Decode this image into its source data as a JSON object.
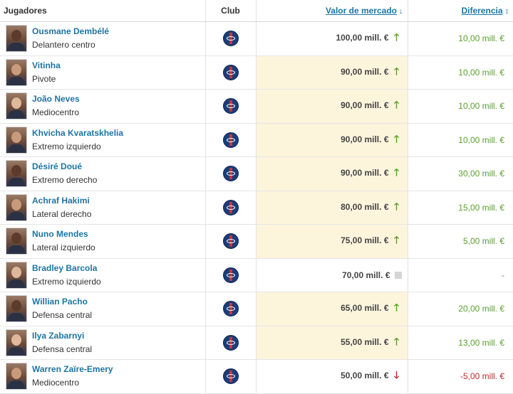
{
  "header": {
    "players": "Jugadores",
    "club": "Club",
    "market_value": "Valor de mercado",
    "market_value_icon": "arrow-down-icon",
    "difference": "Diferencia",
    "difference_icon": "sort-updown-icon"
  },
  "colors": {
    "link": "#1d75a3",
    "up": "#5aa02c",
    "down": "#c0282e",
    "highlight": "#fdf4dc"
  },
  "players": [
    {
      "name": "Ousmane Dembélé",
      "position": "Delantero centro",
      "value": "100,00 mill. €",
      "trend": "up",
      "diff": "10,00 mill. €"
    },
    {
      "name": "Vitinha",
      "position": "Pivote",
      "value": "90,00 mill. €",
      "trend": "up",
      "diff": "10,00 mill. €"
    },
    {
      "name": "João Neves",
      "position": "Mediocentro",
      "value": "90,00 mill. €",
      "trend": "up",
      "diff": "10,00 mill. €"
    },
    {
      "name": "Khvicha Kvaratskhelia",
      "position": "Extremo izquierdo",
      "value": "90,00 mill. €",
      "trend": "up",
      "diff": "10,00 mill. €"
    },
    {
      "name": "Désiré Doué",
      "position": "Extremo derecho",
      "value": "90,00 mill. €",
      "trend": "up",
      "diff": "30,00 mill. €"
    },
    {
      "name": "Achraf Hakimi",
      "position": "Lateral derecho",
      "value": "80,00 mill. €",
      "trend": "up",
      "diff": "15,00 mill. €"
    },
    {
      "name": "Nuno Mendes",
      "position": "Lateral izquierdo",
      "value": "75,00 mill. €",
      "trend": "up",
      "diff": "5,00 mill. €"
    },
    {
      "name": "Bradley Barcola",
      "position": "Extremo izquierdo",
      "value": "70,00 mill. €",
      "trend": "same",
      "diff": "-"
    },
    {
      "name": "Willian Pacho",
      "position": "Defensa central",
      "value": "65,00 mill. €",
      "trend": "up",
      "diff": "20,00 mill. €"
    },
    {
      "name": "Ilya Zabarnyi",
      "position": "Defensa central",
      "value": "55,00 mill. €",
      "trend": "up",
      "diff": "13,00 mill. €"
    },
    {
      "name": "Warren Zaïre-Emery",
      "position": "Mediocentro",
      "value": "50,00 mill. €",
      "trend": "down",
      "diff": "-5,00 mill. €"
    }
  ]
}
